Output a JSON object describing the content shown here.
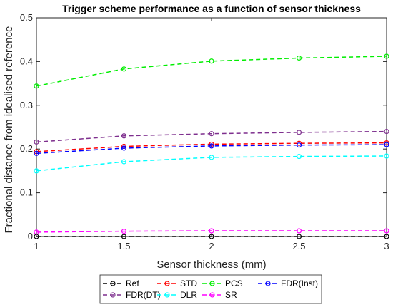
{
  "chart_data": {
    "type": "line",
    "title": "Trigger scheme performance as a function of sensor thickness",
    "xlabel": "Sensor thickness (mm)",
    "ylabel": "Fractional distance from idealised reference",
    "xlim": [
      1,
      3
    ],
    "ylim": [
      0,
      0.5
    ],
    "x_ticks": [
      "1",
      "1.5",
      "2",
      "2.5",
      "3"
    ],
    "y_ticks": [
      "0",
      "0.1",
      "0.2",
      "0.3",
      "0.4",
      "0.5"
    ],
    "grid": false,
    "legend_position": "bottom",
    "x": [
      1,
      1.5,
      2,
      2.5,
      3
    ],
    "series": [
      {
        "name": "Ref",
        "color": "#000000",
        "values": [
          0,
          0,
          0,
          0,
          0
        ]
      },
      {
        "name": "STD",
        "color": "#ff0000",
        "values": [
          0.194,
          0.206,
          0.211,
          0.213,
          0.214
        ]
      },
      {
        "name": "PCS",
        "color": "#00ee00",
        "values": [
          0.344,
          0.383,
          0.401,
          0.408,
          0.412
        ]
      },
      {
        "name": "FDR(Inst)",
        "color": "#0000ff",
        "values": [
          0.19,
          0.202,
          0.207,
          0.209,
          0.21
        ]
      },
      {
        "name": "FDR(DT)",
        "color": "#7e2f8e",
        "values": [
          0.216,
          0.23,
          0.235,
          0.238,
          0.24
        ]
      },
      {
        "name": "DLR",
        "color": "#00ffff",
        "values": [
          0.15,
          0.171,
          0.181,
          0.183,
          0.184
        ]
      },
      {
        "name": "SR",
        "color": "#ff00ff",
        "values": [
          0.01,
          0.012,
          0.013,
          0.013,
          0.013
        ]
      }
    ]
  }
}
